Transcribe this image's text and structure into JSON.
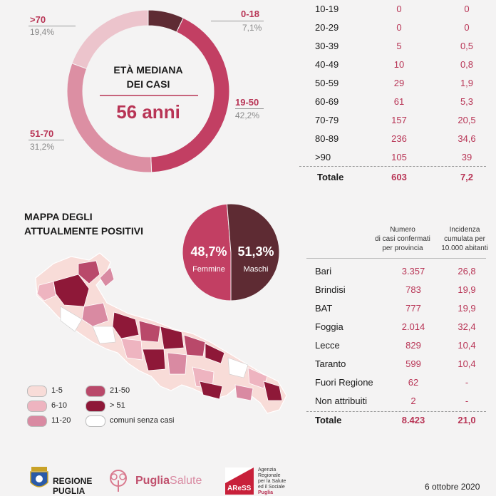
{
  "age_chart": {
    "center_title_line1": "ETÀ MEDIANA",
    "center_title_line2": "DEI CASI",
    "median": "56 anni",
    "labels": [
      {
        "range": ">70",
        "pct": "19,4%"
      },
      {
        "range": "0-18",
        "pct": "7,1%"
      },
      {
        "range": "19-50",
        "pct": "42,2%"
      },
      {
        "range": "51-70",
        "pct": "31,2%"
      }
    ]
  },
  "age_table": {
    "rows": [
      {
        "range": "10-19",
        "cases": "0",
        "rate": "0"
      },
      {
        "range": "20-29",
        "cases": "0",
        "rate": "0"
      },
      {
        "range": "30-39",
        "cases": "5",
        "rate": "0,5"
      },
      {
        "range": "40-49",
        "cases": "10",
        "rate": "0,8"
      },
      {
        "range": "50-59",
        "cases": "29",
        "rate": "1,9"
      },
      {
        "range": "60-69",
        "cases": "61",
        "rate": "5,3"
      },
      {
        "range": "70-79",
        "cases": "157",
        "rate": "20,5"
      },
      {
        "range": "80-89",
        "cases": "236",
        "rate": "34,6"
      },
      {
        "range": ">90",
        "cases": "105",
        "rate": "39"
      }
    ],
    "total_label": "Totale",
    "total_cases": "603",
    "total_rate": "7,2"
  },
  "map": {
    "title_line1": "MAPPA DEGLI",
    "title_line2": "ATTUALMENTE POSITIVI",
    "legend": [
      {
        "label": "1-5",
        "color": "#f8dcd8"
      },
      {
        "label": "6-10",
        "color": "#eeb4c0"
      },
      {
        "label": "11-20",
        "color": "#d98aa2"
      },
      {
        "label": "21-50",
        "color": "#b9496a"
      },
      {
        "label": "> 51",
        "color": "#8e1838"
      },
      {
        "label": "comuni senza casi",
        "color": "#ffffff"
      }
    ]
  },
  "gender": {
    "female_pct": "48,7%",
    "female_label": "Femmine",
    "male_pct": "51,3%",
    "male_label": "Maschi"
  },
  "province_table": {
    "col1_header_l1": "Numero",
    "col1_header_l2": "di casi confermati",
    "col1_header_l3": "per provincia",
    "col2_header_l1": "Incidenza",
    "col2_header_l2": "cumulata per",
    "col2_header_l3": "10.000 abitanti",
    "rows": [
      {
        "name": "Bari",
        "cases": "3.357",
        "rate": "26,8"
      },
      {
        "name": "Brindisi",
        "cases": "783",
        "rate": "19,9"
      },
      {
        "name": "BAT",
        "cases": "777",
        "rate": "19,9"
      },
      {
        "name": "Foggia",
        "cases": "2.014",
        "rate": "32,4"
      },
      {
        "name": "Lecce",
        "cases": "829",
        "rate": "10,4"
      },
      {
        "name": "Taranto",
        "cases": "599",
        "rate": "10,4"
      },
      {
        "name": "Fuori Regione",
        "cases": "62",
        "rate": "-"
      },
      {
        "name": "Non attribuiti",
        "cases": "2",
        "rate": "-"
      }
    ],
    "total_label": "Totale",
    "total_cases": "8.423",
    "total_rate": "21,0"
  },
  "footer": {
    "regione_l1": "REGIONE",
    "regione_l2": "PUGLIA",
    "puglia_bold": "Puglia",
    "puglia_light": "Salute",
    "ares_logo": "AReSS",
    "ares_l1": "Agenzia",
    "ares_l2": "Regionale",
    "ares_l3": "per la Salute",
    "ares_l4": "ed il Sociale",
    "ares_l5": "Puglia",
    "date": "6 ottobre 2020"
  },
  "chart_data": [
    {
      "type": "pie",
      "title": "ETÀ MEDIANA DEI CASI",
      "categories": [
        "0-18",
        "19-50",
        "51-70",
        ">70"
      ],
      "values": [
        7.1,
        42.2,
        31.2,
        19.4
      ],
      "colors": [
        "#5e2b33",
        "#c23f63",
        "#dc8fa3",
        "#ecc4cc"
      ],
      "center_text": "56 anni"
    },
    {
      "type": "pie",
      "categories": [
        "Femmine",
        "Maschi"
      ],
      "values": [
        48.7,
        51.3
      ],
      "colors": [
        "#c23f63",
        "#5e2b33"
      ]
    },
    {
      "type": "table",
      "columns": [
        "",
        "",
        ""
      ],
      "rows": [
        [
          "10-19",
          0,
          0
        ],
        [
          "20-29",
          0,
          0
        ],
        [
          "30-39",
          5,
          0.5
        ],
        [
          "40-49",
          10,
          0.8
        ],
        [
          "50-59",
          29,
          1.9
        ],
        [
          "60-69",
          61,
          5.3
        ],
        [
          "70-79",
          157,
          20.5
        ],
        [
          "80-89",
          236,
          34.6
        ],
        [
          ">90",
          105,
          39
        ],
        [
          "Totale",
          603,
          7.2
        ]
      ]
    },
    {
      "type": "table",
      "columns": [
        "",
        "Numero di casi confermati per provincia",
        "Incidenza cumulata per 10.000 abitanti"
      ],
      "rows": [
        [
          "Bari",
          3357,
          26.8
        ],
        [
          "Brindisi",
          783,
          19.9
        ],
        [
          "BAT",
          777,
          19.9
        ],
        [
          "Foggia",
          2014,
          32.4
        ],
        [
          "Lecce",
          829,
          10.4
        ],
        [
          "Taranto",
          599,
          10.4
        ],
        [
          "Fuori Regione",
          62,
          "-"
        ],
        [
          "Non attribuiti",
          2,
          "-"
        ],
        [
          "Totale",
          8423,
          21.0
        ]
      ]
    }
  ]
}
